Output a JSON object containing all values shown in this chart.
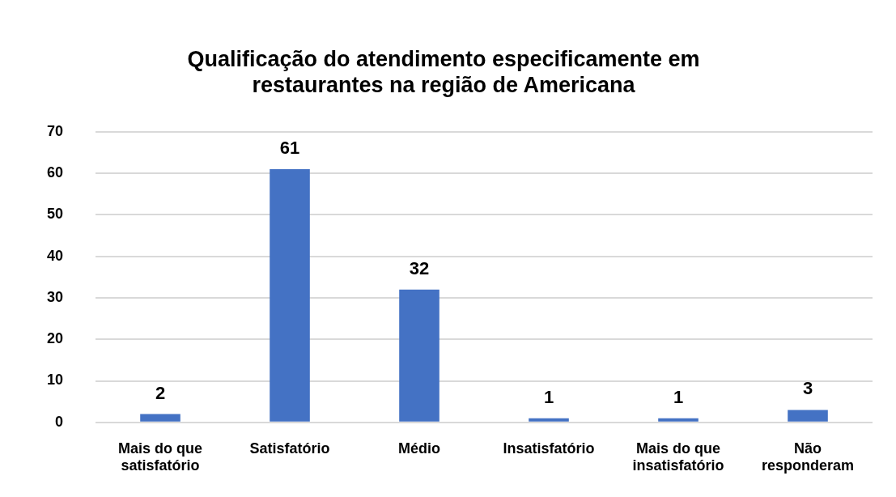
{
  "chart_data": {
    "type": "bar",
    "title": "Qualificação do atendimento especificamente em restaurantes na região de Americana",
    "categories": [
      "Mais do que satisfatório",
      "Satisfatório",
      "Médio",
      "Insatisfatório",
      "Mais do que insatisfatório",
      "Não responderam"
    ],
    "values": [
      2,
      61,
      32,
      1,
      1,
      3
    ],
    "color": "#4472c4",
    "ylim": [
      0,
      70
    ],
    "yticks": [
      0,
      10,
      20,
      30,
      40,
      50,
      60,
      70
    ],
    "grid": "y",
    "legend": false,
    "data_labels": true
  }
}
